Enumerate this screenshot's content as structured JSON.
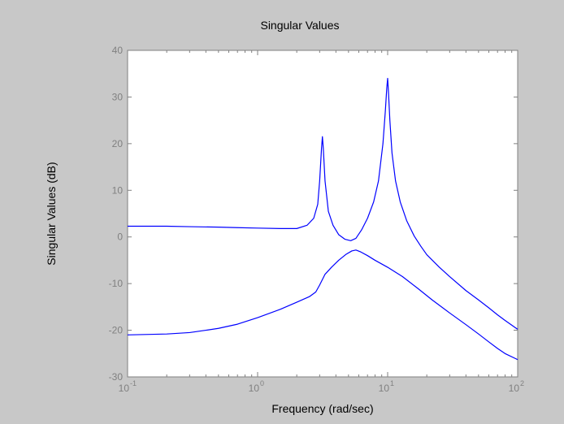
{
  "colors": {
    "figure_background": "#c8c8c8",
    "axes_background": "#ffffff",
    "axis_color": "#808080",
    "line_color": "#0000ff"
  },
  "chart_data": {
    "type": "line",
    "title": "Singular Values",
    "xlabel": "Frequency (rad/sec)",
    "ylabel": "Singular Values (dB)",
    "xscale": "log",
    "xlim": [
      0.1,
      100
    ],
    "ylim": [
      -30,
      40
    ],
    "grid": false,
    "x_ticks": [
      {
        "base": "10",
        "exp": "-1"
      },
      {
        "base": "10",
        "exp": "0"
      },
      {
        "base": "10",
        "exp": "1"
      },
      {
        "base": "10",
        "exp": "2"
      }
    ],
    "y_ticks": [
      "40",
      "30",
      "20",
      "10",
      "0",
      "-10",
      "-20",
      "-30"
    ],
    "series": [
      {
        "x": [
          0.1,
          0.2,
          0.3,
          0.5,
          0.7,
          1.0,
          1.5,
          2.0,
          2.4,
          2.7,
          2.9,
          3.0,
          3.1,
          3.15,
          3.2,
          3.3,
          3.5,
          3.8,
          4.2,
          4.7,
          5.2,
          5.7,
          6.3,
          7.0,
          7.8,
          8.5,
          9.2,
          9.6,
          9.85,
          10.0,
          10.15,
          10.4,
          10.8,
          11.5,
          12.5,
          14,
          16,
          18,
          20,
          25,
          30,
          40,
          50,
          60,
          70,
          80,
          100
        ],
        "y": [
          2.3,
          2.3,
          2.2,
          2.1,
          2.0,
          1.9,
          1.8,
          1.8,
          2.5,
          4.0,
          7.0,
          12.0,
          19.0,
          21.5,
          19.0,
          12.0,
          5.5,
          2.5,
          0.5,
          -0.5,
          -0.8,
          -0.3,
          1.5,
          4.0,
          7.5,
          12.0,
          20.0,
          27.0,
          32.0,
          34.0,
          31.0,
          25.0,
          18.0,
          12.0,
          7.5,
          3.5,
          0.2,
          -2.0,
          -3.8,
          -6.5,
          -8.5,
          -11.5,
          -13.5,
          -15.2,
          -16.7,
          -17.9,
          -19.8
        ]
      },
      {
        "x": [
          0.1,
          0.2,
          0.3,
          0.4,
          0.5,
          0.7,
          1.0,
          1.5,
          2.0,
          2.5,
          2.8,
          3.0,
          3.3,
          3.7,
          4.2,
          4.8,
          5.3,
          5.7,
          6.2,
          7.0,
          8.0,
          10.0,
          13,
          17,
          22,
          30,
          40,
          50,
          60,
          70,
          80,
          100
        ],
        "y": [
          -21.0,
          -20.8,
          -20.5,
          -20.0,
          -19.6,
          -18.7,
          -17.3,
          -15.5,
          -14.0,
          -12.8,
          -11.8,
          -10.3,
          -8.0,
          -6.5,
          -5.0,
          -3.7,
          -3.0,
          -2.8,
          -3.2,
          -4.0,
          -5.0,
          -6.5,
          -8.5,
          -11.0,
          -13.5,
          -16.3,
          -18.8,
          -20.8,
          -22.5,
          -23.9,
          -25.0,
          -26.3
        ]
      }
    ]
  }
}
